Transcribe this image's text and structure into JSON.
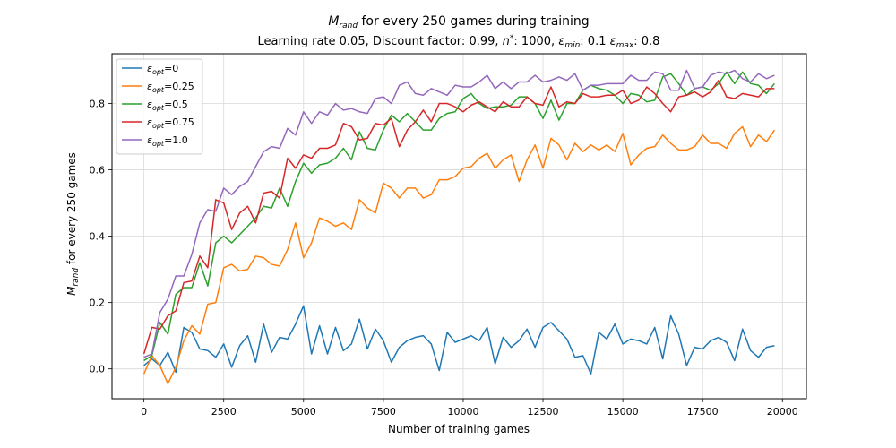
{
  "chart_data": {
    "type": "line",
    "title": "M_rand for every 250 games during training",
    "title_parts": {
      "main": "M",
      "sub": "rand",
      "rest": " for every 250 games during training"
    },
    "subtitle": "Learning rate 0.05, Discount factor: 0.99, n*: 1000, ε_min: 0.1 ε_max: 0.8",
    "subtitle_parts": {
      "a": "Learning rate 0.05, Discount factor: 0.99, ",
      "n": "n",
      "nsup": "*",
      "b": ": 1000, ",
      "eps": "ε",
      "min": "min",
      "c": ": 0.1 ",
      "max": "max",
      "d": ": 0.8"
    },
    "xlabel": "Number of training games",
    "ylabel": "M_rand for every 250 games",
    "ylabel_parts": {
      "main": "M",
      "sub": "rand",
      "rest": " for every 250 games"
    },
    "xlim": [
      -1000,
      20750
    ],
    "ylim": [
      -0.09,
      0.95
    ],
    "xticks": [
      0,
      2500,
      5000,
      7500,
      10000,
      12500,
      15000,
      17500,
      20000
    ],
    "xtick_labels": [
      "0",
      "2500",
      "5000",
      "7500",
      "10000",
      "12500",
      "15000",
      "17500",
      "20000"
    ],
    "yticks": [
      0.0,
      0.2,
      0.4,
      0.6,
      0.8
    ],
    "ytick_labels": [
      "0.0",
      "0.2",
      "0.4",
      "0.6",
      "0.8"
    ],
    "grid": true,
    "legend_position": "top-left",
    "x": [
      0,
      250,
      500,
      750,
      1000,
      1250,
      1500,
      1750,
      2000,
      2250,
      2500,
      2750,
      3000,
      3250,
      3500,
      3750,
      4000,
      4250,
      4500,
      4750,
      5000,
      5250,
      5500,
      5750,
      6000,
      6250,
      6500,
      6750,
      7000,
      7250,
      7500,
      7750,
      8000,
      8250,
      8500,
      8750,
      9000,
      9250,
      9500,
      9750,
      10000,
      10250,
      10500,
      10750,
      11000,
      11250,
      11500,
      11750,
      12000,
      12250,
      12500,
      12750,
      13000,
      13250,
      13500,
      13750,
      14000,
      14250,
      14500,
      14750,
      15000,
      15250,
      15500,
      15750,
      16000,
      16250,
      16500,
      16750,
      17000,
      17250,
      17500,
      17750,
      18000,
      18250,
      18500,
      18750,
      19000,
      19250,
      19500,
      19750
    ],
    "series": [
      {
        "name": "ε_opt=0",
        "name_parts": {
          "eps": "ε",
          "sub": "opt",
          "rest": "=0"
        },
        "color": "#1f77b4",
        "values": [
          0.01,
          0.03,
          0.01,
          0.05,
          -0.01,
          0.125,
          0.11,
          0.06,
          0.055,
          0.035,
          0.075,
          0.005,
          0.07,
          0.1,
          0.02,
          0.135,
          0.05,
          0.095,
          0.09,
          0.135,
          0.19,
          0.045,
          0.13,
          0.045,
          0.125,
          0.055,
          0.075,
          0.15,
          0.06,
          0.12,
          0.085,
          0.02,
          0.065,
          0.085,
          0.095,
          0.1,
          0.075,
          -0.005,
          0.11,
          0.08,
          0.09,
          0.1,
          0.085,
          0.125,
          0.015,
          0.095,
          0.065,
          0.085,
          0.12,
          0.065,
          0.125,
          0.14,
          0.115,
          0.09,
          0.035,
          0.04,
          -0.015,
          0.11,
          0.09,
          0.135,
          0.075,
          0.09,
          0.085,
          0.075,
          0.125,
          0.03,
          0.16,
          0.105,
          0.01,
          0.065,
          0.06,
          0.085,
          0.095,
          0.08,
          0.025,
          0.12,
          0.055,
          0.035,
          0.065,
          0.07
        ]
      },
      {
        "name": "ε_opt=0.25",
        "name_parts": {
          "eps": "ε",
          "sub": "opt",
          "rest": "=0.25"
        },
        "color": "#ff7f0e",
        "values": [
          -0.015,
          0.04,
          0.01,
          -0.045,
          0.005,
          0.085,
          0.13,
          0.105,
          0.195,
          0.2,
          0.305,
          0.315,
          0.295,
          0.3,
          0.34,
          0.335,
          0.315,
          0.31,
          0.36,
          0.44,
          0.335,
          0.38,
          0.455,
          0.445,
          0.43,
          0.44,
          0.42,
          0.51,
          0.485,
          0.47,
          0.56,
          0.545,
          0.515,
          0.545,
          0.545,
          0.515,
          0.525,
          0.57,
          0.57,
          0.58,
          0.605,
          0.61,
          0.635,
          0.65,
          0.605,
          0.63,
          0.645,
          0.565,
          0.63,
          0.675,
          0.605,
          0.695,
          0.675,
          0.63,
          0.68,
          0.655,
          0.675,
          0.66,
          0.675,
          0.655,
          0.71,
          0.615,
          0.645,
          0.665,
          0.67,
          0.705,
          0.68,
          0.66,
          0.66,
          0.67,
          0.705,
          0.68,
          0.68,
          0.665,
          0.71,
          0.73,
          0.67,
          0.705,
          0.685,
          0.72
        ]
      },
      {
        "name": "ε_opt=0.5",
        "name_parts": {
          "eps": "ε",
          "sub": "opt",
          "rest": "=0.5"
        },
        "color": "#2ca02c",
        "values": [
          0.025,
          0.04,
          0.14,
          0.105,
          0.225,
          0.245,
          0.245,
          0.32,
          0.25,
          0.38,
          0.4,
          0.38,
          0.405,
          0.43,
          0.455,
          0.49,
          0.485,
          0.545,
          0.49,
          0.565,
          0.62,
          0.59,
          0.615,
          0.62,
          0.635,
          0.665,
          0.63,
          0.715,
          0.665,
          0.66,
          0.72,
          0.765,
          0.745,
          0.77,
          0.745,
          0.72,
          0.72,
          0.755,
          0.77,
          0.775,
          0.815,
          0.83,
          0.8,
          0.785,
          0.79,
          0.79,
          0.795,
          0.82,
          0.82,
          0.8,
          0.755,
          0.81,
          0.75,
          0.8,
          0.8,
          0.84,
          0.855,
          0.845,
          0.84,
          0.825,
          0.8,
          0.83,
          0.825,
          0.805,
          0.81,
          0.88,
          0.89,
          0.86,
          0.825,
          0.845,
          0.85,
          0.84,
          0.86,
          0.895,
          0.86,
          0.895,
          0.86,
          0.855,
          0.83,
          0.86
        ]
      },
      {
        "name": "ε_opt=0.75",
        "name_parts": {
          "eps": "ε",
          "sub": "opt",
          "rest": "=0.75"
        },
        "color": "#d62728",
        "values": [
          0.045,
          0.125,
          0.12,
          0.16,
          0.175,
          0.26,
          0.265,
          0.34,
          0.305,
          0.51,
          0.5,
          0.42,
          0.47,
          0.49,
          0.44,
          0.53,
          0.535,
          0.515,
          0.635,
          0.605,
          0.645,
          0.635,
          0.665,
          0.665,
          0.675,
          0.74,
          0.73,
          0.69,
          0.695,
          0.74,
          0.735,
          0.755,
          0.67,
          0.72,
          0.745,
          0.78,
          0.745,
          0.8,
          0.8,
          0.79,
          0.775,
          0.795,
          0.805,
          0.79,
          0.775,
          0.805,
          0.79,
          0.79,
          0.82,
          0.8,
          0.795,
          0.85,
          0.79,
          0.805,
          0.8,
          0.83,
          0.82,
          0.82,
          0.825,
          0.825,
          0.84,
          0.8,
          0.81,
          0.85,
          0.83,
          0.8,
          0.775,
          0.82,
          0.825,
          0.835,
          0.82,
          0.835,
          0.87,
          0.82,
          0.815,
          0.83,
          0.825,
          0.82,
          0.845,
          0.845
        ]
      },
      {
        "name": "ε_opt=1.0",
        "name_parts": {
          "eps": "ε",
          "sub": "opt",
          "rest": "=1.0"
        },
        "color": "#9467bd",
        "values": [
          0.035,
          0.045,
          0.17,
          0.21,
          0.28,
          0.28,
          0.345,
          0.44,
          0.48,
          0.475,
          0.545,
          0.525,
          0.55,
          0.565,
          0.61,
          0.655,
          0.67,
          0.665,
          0.725,
          0.705,
          0.775,
          0.74,
          0.775,
          0.765,
          0.8,
          0.78,
          0.785,
          0.775,
          0.77,
          0.815,
          0.82,
          0.8,
          0.855,
          0.865,
          0.83,
          0.825,
          0.845,
          0.835,
          0.825,
          0.855,
          0.85,
          0.85,
          0.865,
          0.885,
          0.845,
          0.865,
          0.845,
          0.865,
          0.865,
          0.885,
          0.865,
          0.87,
          0.88,
          0.87,
          0.89,
          0.84,
          0.855,
          0.855,
          0.86,
          0.86,
          0.86,
          0.885,
          0.87,
          0.87,
          0.895,
          0.89,
          0.84,
          0.84,
          0.9,
          0.845,
          0.85,
          0.885,
          0.895,
          0.89,
          0.9,
          0.875,
          0.865,
          0.89,
          0.875,
          0.885
        ]
      }
    ]
  }
}
